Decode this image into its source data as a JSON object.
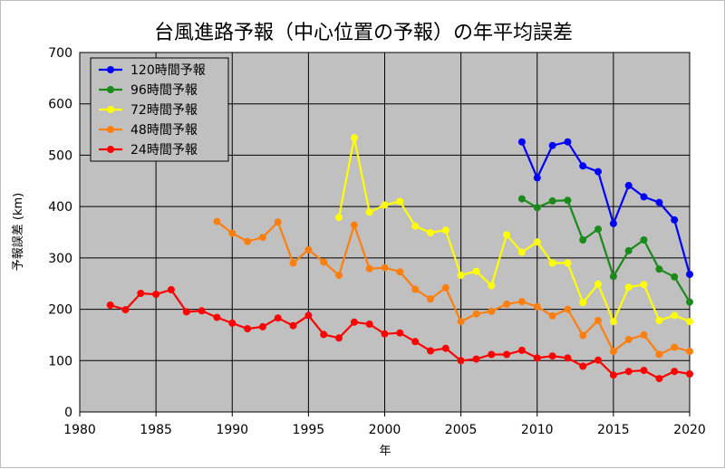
{
  "chart_data": {
    "type": "line",
    "title": "台風進路予報（中心位置の予報）の年平均誤差",
    "xlabel": "年",
    "ylabel": "予報誤差 (km)",
    "xlim": [
      1980,
      2020
    ],
    "ylim": [
      0,
      700
    ],
    "xticks": [
      1980,
      1985,
      1990,
      1995,
      2000,
      2005,
      2010,
      2015,
      2020
    ],
    "yticks": [
      0,
      100,
      200,
      300,
      400,
      500,
      600,
      700
    ],
    "grid": "horizontal",
    "plot_background": "#c0c0c0",
    "legend_position": "top-left",
    "series": [
      {
        "name": "120時間予報",
        "color": "#0000ff",
        "x": [
          2009,
          2010,
          2011,
          2012,
          2013,
          2014,
          2015,
          2016,
          2017,
          2018,
          2019,
          2020
        ],
        "values": [
          526,
          456,
          519,
          526,
          479,
          468,
          367,
          441,
          419,
          408,
          374,
          268
        ]
      },
      {
        "name": "96時間予報",
        "color": "#1a8a1a",
        "x": [
          2009,
          2010,
          2011,
          2012,
          2013,
          2014,
          2015,
          2016,
          2017,
          2018,
          2019,
          2020
        ],
        "values": [
          415,
          398,
          411,
          412,
          335,
          356,
          264,
          314,
          335,
          278,
          263,
          214
        ]
      },
      {
        "name": "72時間予報",
        "color": "#ffff00",
        "x": [
          1997,
          1998,
          1999,
          2000,
          2001,
          2002,
          2003,
          2004,
          2005,
          2006,
          2007,
          2008,
          2009,
          2010,
          2011,
          2012,
          2013,
          2014,
          2015,
          2016,
          2017,
          2018,
          2019,
          2020
        ],
        "values": [
          379,
          534,
          389,
          403,
          410,
          362,
          349,
          354,
          266,
          274,
          246,
          345,
          311,
          331,
          290,
          290,
          213,
          249,
          176,
          243,
          248,
          178,
          188,
          176
        ]
      },
      {
        "name": "48時間予報",
        "color": "#ff7f0e",
        "x": [
          1989,
          1990,
          1991,
          1992,
          1993,
          1994,
          1995,
          1996,
          1997,
          1998,
          1999,
          2000,
          2001,
          2002,
          2003,
          2004,
          2005,
          2006,
          2007,
          2008,
          2009,
          2010,
          2011,
          2012,
          2013,
          2014,
          2015,
          2016,
          2017,
          2018,
          2019,
          2020
        ],
        "values": [
          371,
          348,
          332,
          340,
          370,
          290,
          316,
          292,
          266,
          364,
          279,
          281,
          273,
          239,
          220,
          242,
          176,
          191,
          196,
          210,
          215,
          205,
          187,
          200,
          149,
          178,
          118,
          141,
          150,
          112,
          126,
          118
        ]
      },
      {
        "name": "24時間予報",
        "color": "#ff0000",
        "x": [
          1982,
          1983,
          1984,
          1985,
          1986,
          1987,
          1988,
          1989,
          1990,
          1991,
          1992,
          1993,
          1994,
          1995,
          1996,
          1997,
          1998,
          1999,
          2000,
          2001,
          2002,
          2003,
          2004,
          2005,
          2006,
          2007,
          2008,
          2009,
          2010,
          2011,
          2012,
          2013,
          2014,
          2015,
          2016,
          2017,
          2018,
          2019,
          2020
        ],
        "values": [
          208,
          199,
          231,
          229,
          238,
          195,
          197,
          184,
          173,
          162,
          166,
          183,
          168,
          188,
          151,
          144,
          175,
          171,
          152,
          154,
          137,
          119,
          124,
          100,
          103,
          112,
          112,
          120,
          105,
          109,
          105,
          89,
          101,
          72,
          79,
          81,
          65,
          79,
          74
        ]
      }
    ]
  }
}
